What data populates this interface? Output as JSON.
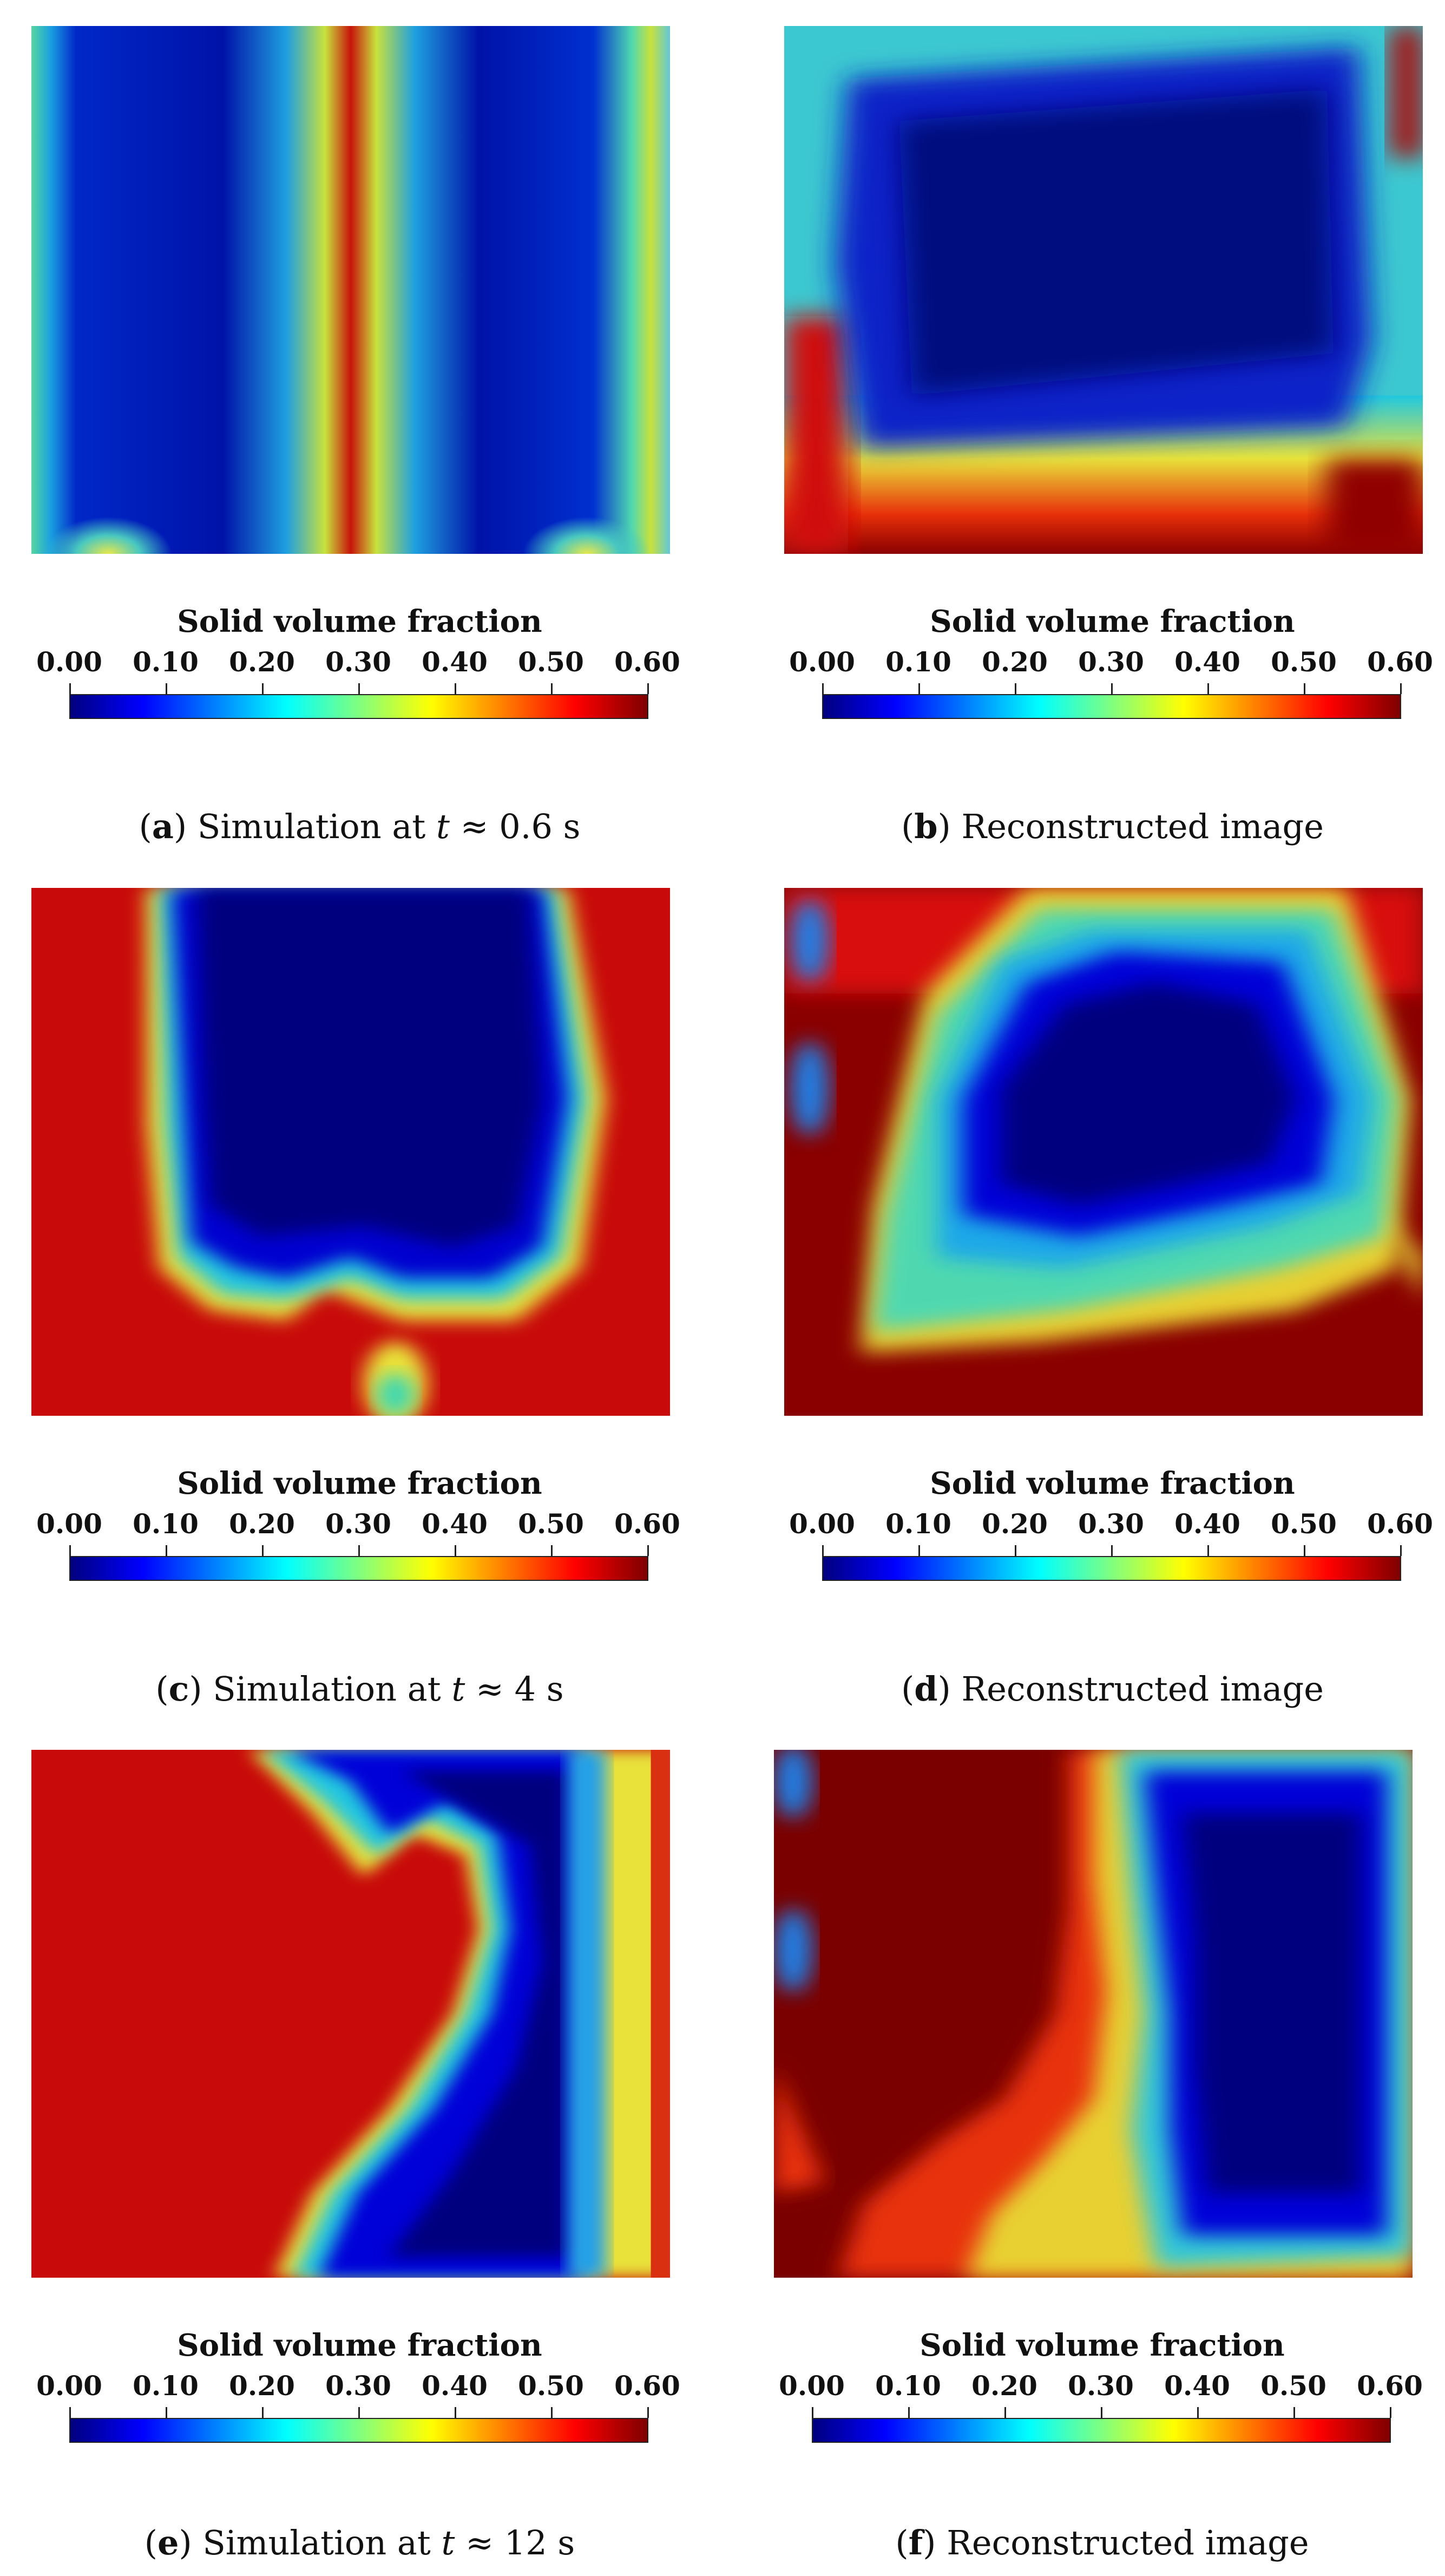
{
  "colormap": {
    "stops": [
      "#00007f",
      "#0000ff",
      "#007fff",
      "#00ffff",
      "#7fff7f",
      "#ffff00",
      "#ff7f00",
      "#ff0000",
      "#7f0000"
    ],
    "min": 0.0,
    "max": 0.6
  },
  "panels": [
    {
      "id": "a",
      "colorbar": {
        "title": "Solid volume fraction",
        "ticks": [
          "0.00",
          "0.10",
          "0.20",
          "0.30",
          "0.40",
          "0.50",
          "0.60"
        ]
      },
      "caption": {
        "letter": "a",
        "text_before": "Simulation at ",
        "var": "t",
        "text_after": " ≈ 0.6 s"
      }
    },
    {
      "id": "b",
      "colorbar": {
        "title": "Solid volume fraction",
        "ticks": [
          "0.00",
          "0.10",
          "0.20",
          "0.30",
          "0.40",
          "0.50",
          "0.60"
        ]
      },
      "caption": {
        "letter": "b",
        "text_before": "Reconstructed image",
        "var": "",
        "text_after": ""
      }
    },
    {
      "id": "c",
      "colorbar": {
        "title": "Solid volume fraction",
        "ticks": [
          "0.00",
          "0.10",
          "0.20",
          "0.30",
          "0.40",
          "0.50",
          "0.60"
        ]
      },
      "caption": {
        "letter": "c",
        "text_before": "Simulation at ",
        "var": "t",
        "text_after": " ≈ 4 s"
      }
    },
    {
      "id": "d",
      "colorbar": {
        "title": "Solid volume fraction",
        "ticks": [
          "0.00",
          "0.10",
          "0.20",
          "0.30",
          "0.40",
          "0.50",
          "0.60"
        ]
      },
      "caption": {
        "letter": "d",
        "text_before": "Reconstructed image",
        "var": "",
        "text_after": ""
      }
    },
    {
      "id": "e",
      "colorbar": {
        "title": "Solid volume fraction",
        "ticks": [
          "0.00",
          "0.10",
          "0.20",
          "0.30",
          "0.40",
          "0.50",
          "0.60"
        ]
      },
      "caption": {
        "letter": "e",
        "text_before": "Simulation at ",
        "var": "t",
        "text_after": " ≈ 12 s"
      }
    },
    {
      "id": "f",
      "colorbar": {
        "title": "Solid volume fraction",
        "ticks": [
          "0.00",
          "0.10",
          "0.20",
          "0.30",
          "0.40",
          "0.50",
          "0.60"
        ]
      },
      "caption": {
        "letter": "f",
        "text_before": "Reconstructed image",
        "var": "",
        "text_after": ""
      }
    }
  ]
}
